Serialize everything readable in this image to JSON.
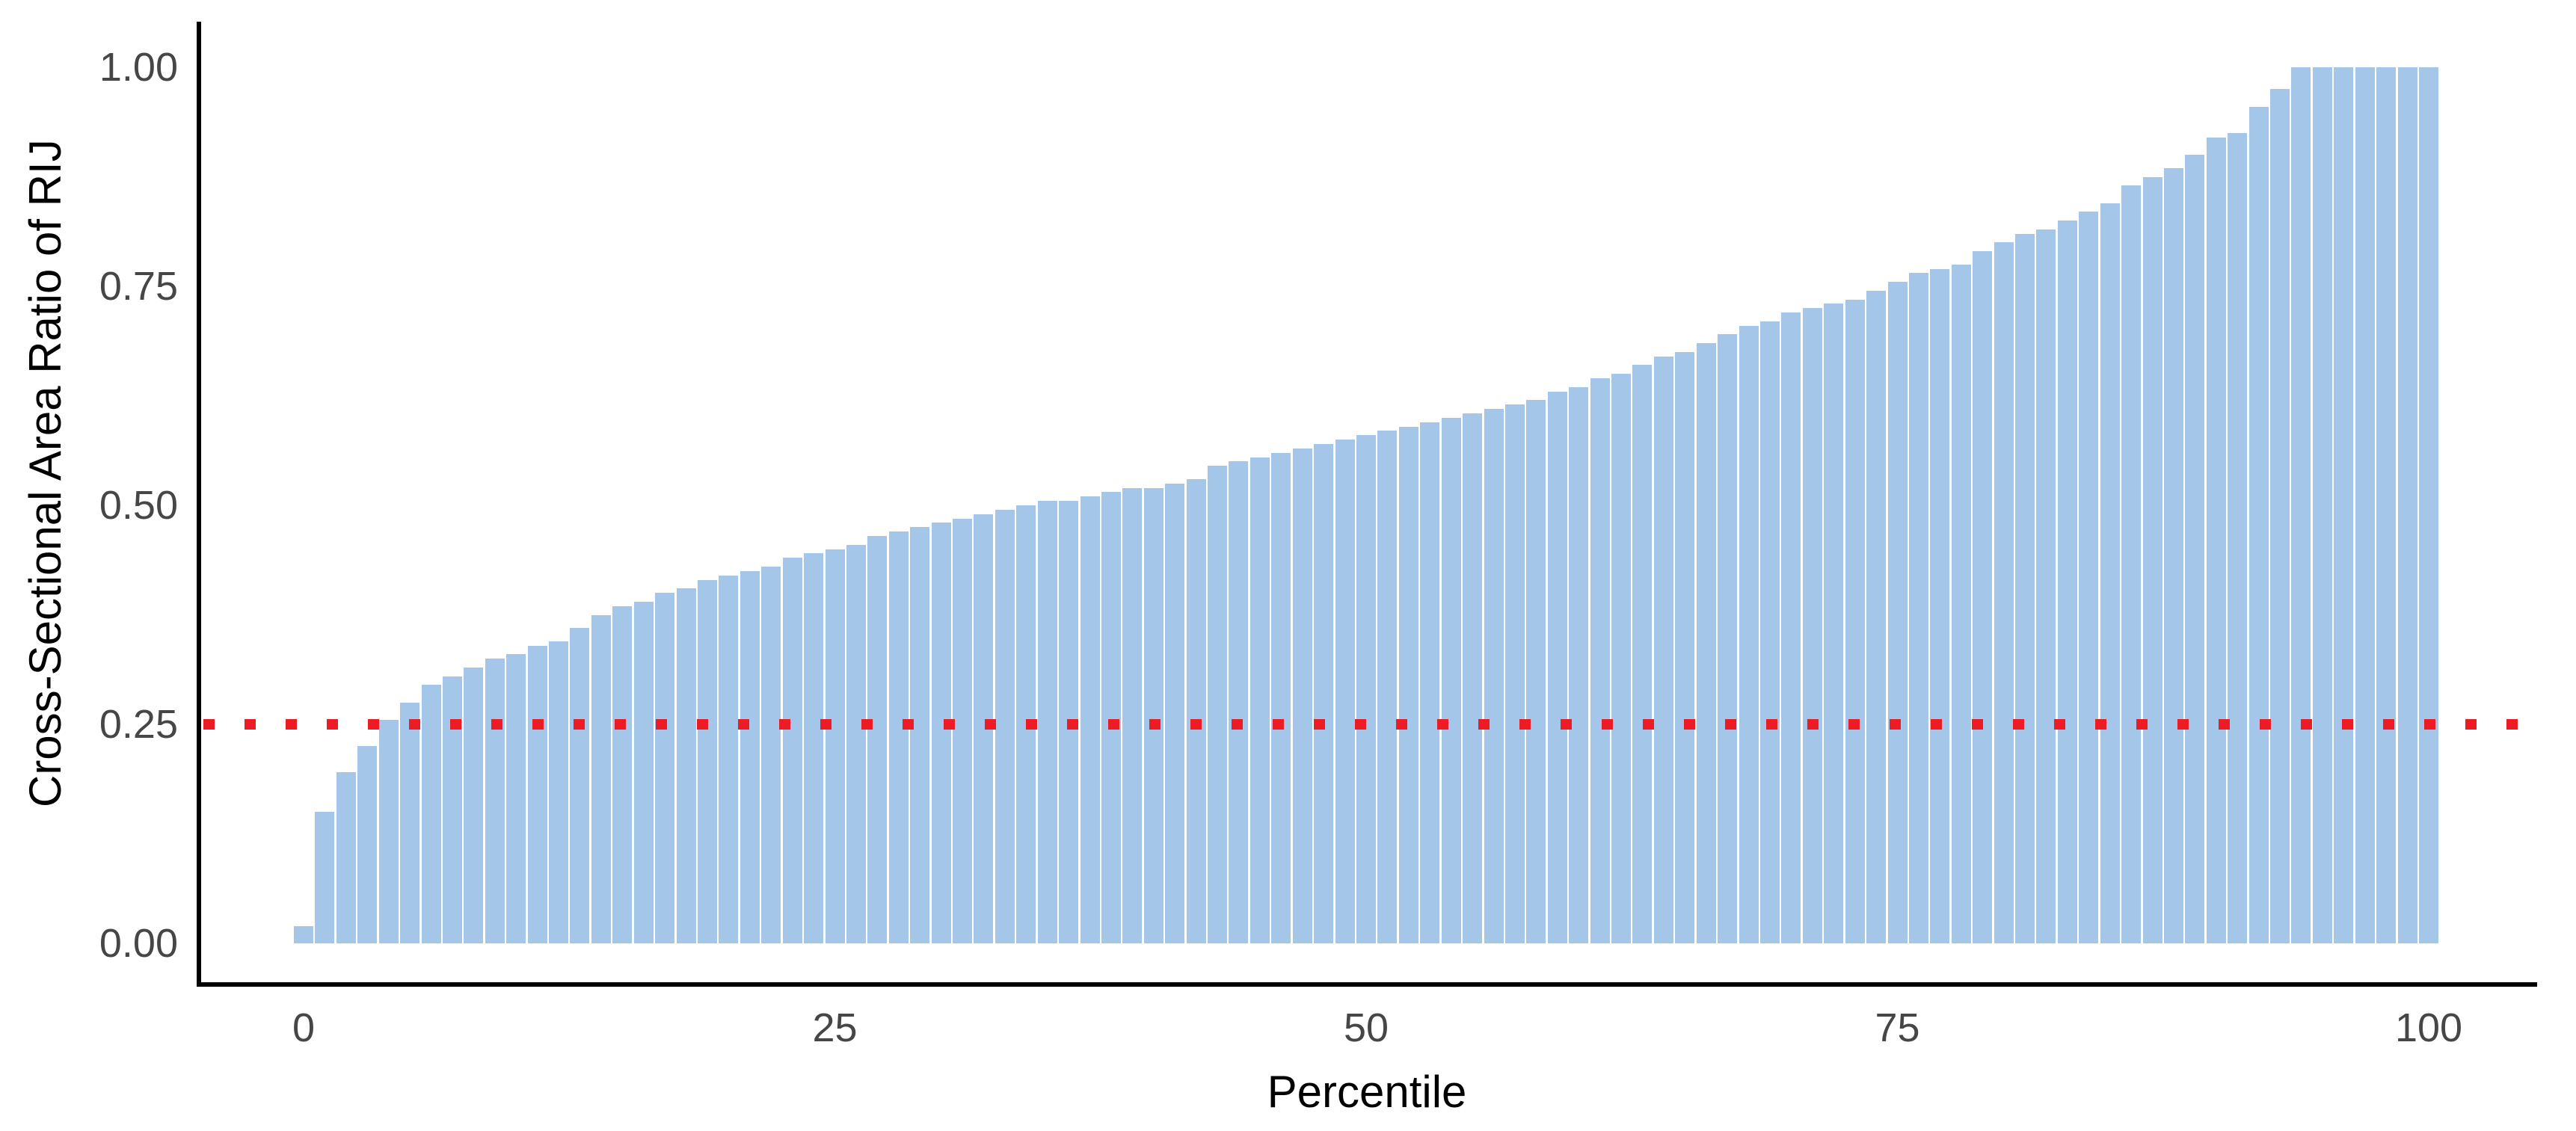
{
  "chart_data": {
    "type": "bar",
    "title": "",
    "xlabel": "Percentile",
    "ylabel": "Cross-Sectional Area Ratio of RIJ",
    "x": [
      0,
      1,
      2,
      3,
      4,
      5,
      6,
      7,
      8,
      9,
      10,
      11,
      12,
      13,
      14,
      15,
      16,
      17,
      18,
      19,
      20,
      21,
      22,
      23,
      24,
      25,
      26,
      27,
      28,
      29,
      30,
      31,
      32,
      33,
      34,
      35,
      36,
      37,
      38,
      39,
      40,
      41,
      42,
      43,
      44,
      45,
      46,
      47,
      48,
      49,
      50,
      51,
      52,
      53,
      54,
      55,
      56,
      57,
      58,
      59,
      60,
      61,
      62,
      63,
      64,
      65,
      66,
      67,
      68,
      69,
      70,
      71,
      72,
      73,
      74,
      75,
      76,
      77,
      78,
      79,
      80,
      81,
      82,
      83,
      84,
      85,
      86,
      87,
      88,
      89,
      90,
      91,
      92,
      93,
      94,
      95,
      96,
      97,
      98,
      99,
      100
    ],
    "values": [
      0.02,
      0.15,
      0.195,
      0.225,
      0.255,
      0.275,
      0.295,
      0.305,
      0.315,
      0.325,
      0.33,
      0.34,
      0.345,
      0.36,
      0.375,
      0.385,
      0.39,
      0.4,
      0.405,
      0.415,
      0.42,
      0.425,
      0.43,
      0.44,
      0.445,
      0.45,
      0.455,
      0.465,
      0.47,
      0.475,
      0.48,
      0.485,
      0.49,
      0.495,
      0.5,
      0.505,
      0.505,
      0.51,
      0.515,
      0.52,
      0.52,
      0.525,
      0.53,
      0.545,
      0.55,
      0.555,
      0.56,
      0.565,
      0.57,
      0.575,
      0.58,
      0.585,
      0.59,
      0.595,
      0.6,
      0.605,
      0.61,
      0.615,
      0.62,
      0.63,
      0.635,
      0.645,
      0.65,
      0.66,
      0.67,
      0.675,
      0.685,
      0.695,
      0.705,
      0.71,
      0.72,
      0.725,
      0.73,
      0.735,
      0.745,
      0.755,
      0.765,
      0.77,
      0.775,
      0.79,
      0.8,
      0.81,
      0.815,
      0.825,
      0.835,
      0.845,
      0.865,
      0.875,
      0.885,
      0.9,
      0.92,
      0.925,
      0.955,
      0.975,
      1.0,
      1.0,
      1.0,
      1.0,
      1.0,
      1.0,
      1.0
    ],
    "xlim": [
      0,
      100
    ],
    "ylim": [
      0,
      1
    ],
    "x_tick_labels": [
      "0",
      "25",
      "50",
      "75",
      "100"
    ],
    "x_tick_values": [
      0,
      25,
      50,
      75,
      100
    ],
    "y_tick_labels": [
      "0.00",
      "0.25",
      "0.50",
      "0.75",
      "1.00"
    ],
    "y_tick_values": [
      0.0,
      0.25,
      0.5,
      0.75,
      1.0
    ],
    "grid": false,
    "legend": "none",
    "bar_color": "#a4c6e8",
    "reference_line": {
      "y": 0.25,
      "style": "dotted",
      "color": "#ed1c24"
    },
    "axis_line_color": "#000000",
    "tick_label_color": "#464646",
    "background_color": "#ffffff"
  }
}
